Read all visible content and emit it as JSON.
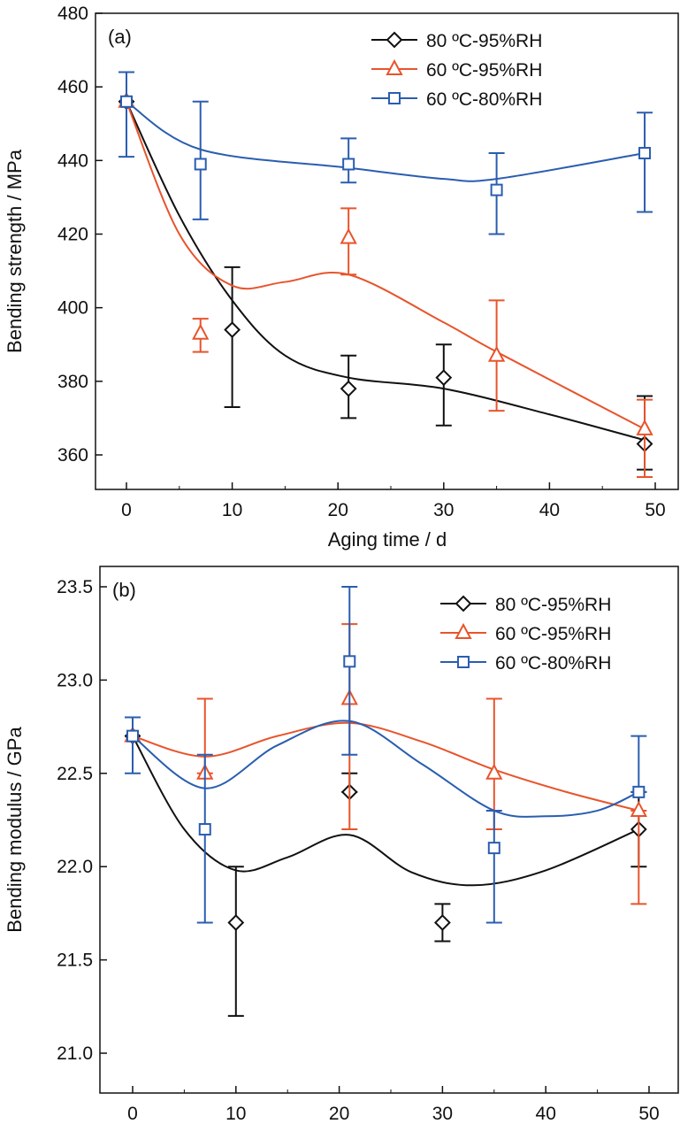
{
  "chart_data": [
    {
      "type": "line",
      "panel_label": "(a)",
      "xlabel": "Aging time / d",
      "ylabel": "Bending strength / MPa",
      "xlim": [
        -3,
        52
      ],
      "ylim": [
        350,
        480
      ],
      "xticks": [
        0,
        10,
        20,
        30,
        40,
        50
      ],
      "yticks": [
        360,
        380,
        400,
        420,
        440,
        460,
        480
      ],
      "legend_position": "top-right",
      "series": [
        {
          "name": "80 ºC-95%RH",
          "color": "#111111",
          "marker": "diamond",
          "x": [
            0,
            10,
            21,
            30,
            49
          ],
          "y": [
            456,
            394,
            378,
            381,
            363
          ],
          "err_low": [
            456,
            373,
            370,
            368,
            356
          ],
          "err_high": [
            456,
            411,
            387,
            390,
            376
          ],
          "fit_x": [
            0,
            5,
            10,
            15,
            21,
            30,
            40,
            49
          ],
          "fit_y": [
            456,
            425,
            402,
            387,
            381,
            378,
            371,
            364
          ]
        },
        {
          "name": "60 ºC-95%RH",
          "color": "#e8542c",
          "marker": "triangle",
          "x": [
            0,
            7,
            21,
            35,
            49
          ],
          "y": [
            456,
            393,
            419,
            387,
            367
          ],
          "err_low": [
            456,
            388,
            409,
            372,
            354
          ],
          "err_high": [
            456,
            397,
            427,
            402,
            375
          ],
          "fit_x": [
            0,
            5,
            10,
            15,
            21,
            30,
            35,
            49
          ],
          "fit_y": [
            456,
            420,
            406,
            407,
            409,
            396,
            388,
            367
          ]
        },
        {
          "name": "60 ºC-80%RH",
          "color": "#2a5db0",
          "marker": "square",
          "x": [
            0,
            7,
            21,
            35,
            49
          ],
          "y": [
            456,
            439,
            439,
            432,
            442
          ],
          "err_low": [
            441,
            424,
            434,
            420,
            426
          ],
          "err_high": [
            464,
            456,
            446,
            442,
            453
          ],
          "fit_x": [
            0,
            7,
            21,
            30,
            35,
            49
          ],
          "fit_y": [
            456,
            443,
            438,
            435,
            435,
            442
          ]
        }
      ]
    },
    {
      "type": "line",
      "panel_label": "(b)",
      "xlabel": "Aging time / d",
      "ylabel": "Bending modulus / GPa",
      "xlim": [
        -3,
        52
      ],
      "ylim": [
        20.9,
        23.7
      ],
      "xticks": [
        0,
        10,
        20,
        30,
        40,
        50
      ],
      "yticks": [
        21.0,
        21.5,
        22.0,
        22.5,
        23.0,
        23.5
      ],
      "legend_position": "top-right",
      "series": [
        {
          "name": "80 ºC-95%RH",
          "color": "#111111",
          "marker": "diamond",
          "x": [
            0,
            10,
            21,
            30,
            49
          ],
          "y": [
            22.7,
            21.7,
            22.4,
            21.7,
            22.2
          ],
          "err_low": [
            22.7,
            21.2,
            22.4,
            21.6,
            22.0
          ],
          "err_high": [
            22.7,
            22.0,
            22.5,
            21.8,
            22.4
          ],
          "fit_x": [
            0,
            5,
            10,
            15,
            21,
            27,
            33,
            40,
            49
          ],
          "fit_y": [
            22.7,
            22.2,
            21.98,
            22.05,
            22.17,
            21.97,
            21.9,
            21.98,
            22.2
          ]
        },
        {
          "name": "60 ºC-95%RH",
          "color": "#e8542c",
          "marker": "triangle",
          "x": [
            0,
            7,
            21,
            35,
            49
          ],
          "y": [
            22.7,
            22.5,
            22.9,
            22.5,
            22.3
          ],
          "err_low": [
            22.7,
            22.5,
            22.2,
            22.2,
            21.8
          ],
          "err_high": [
            22.7,
            22.9,
            23.3,
            22.9,
            22.3
          ],
          "fit_x": [
            0,
            7,
            14,
            21,
            28,
            35,
            42,
            49
          ],
          "fit_y": [
            22.7,
            22.59,
            22.7,
            22.77,
            22.67,
            22.52,
            22.4,
            22.3
          ]
        },
        {
          "name": "60 ºC-80%RH",
          "color": "#2a5db0",
          "marker": "square",
          "x": [
            0,
            7,
            21,
            35,
            49
          ],
          "y": [
            22.7,
            22.2,
            23.1,
            22.1,
            22.4
          ],
          "err_low": [
            22.5,
            21.7,
            22.6,
            21.7,
            22.4
          ],
          "err_high": [
            22.8,
            22.6,
            23.5,
            22.3,
            22.7
          ],
          "fit_x": [
            0,
            7,
            14,
            21,
            28,
            35,
            40,
            45,
            49
          ],
          "fit_y": [
            22.7,
            22.42,
            22.65,
            22.78,
            22.55,
            22.3,
            22.27,
            22.3,
            22.4
          ]
        }
      ]
    }
  ]
}
